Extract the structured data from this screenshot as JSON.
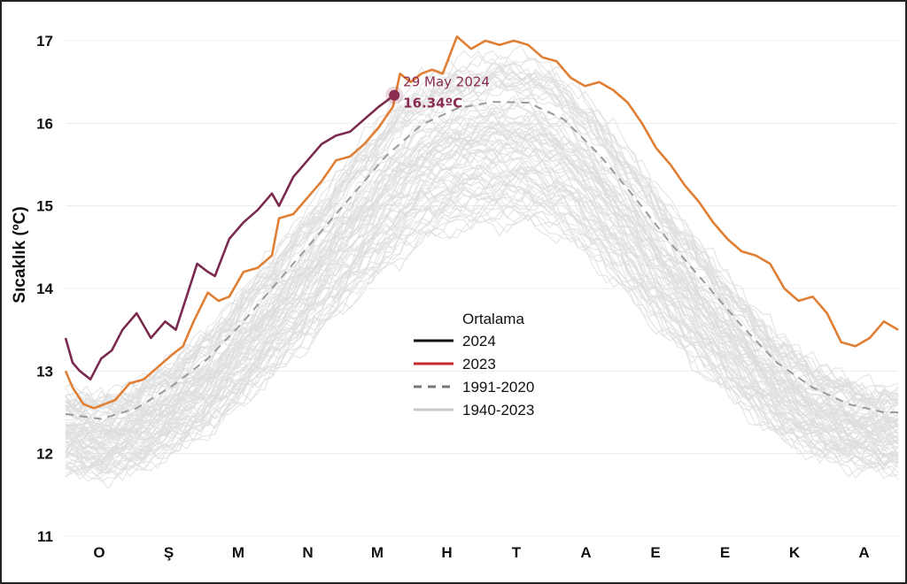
{
  "chart_data": {
    "type": "line",
    "title": "",
    "xlabel": "",
    "ylabel": "Sıcaklık (ºC)",
    "ylim": [
      11,
      17
    ],
    "yticks": [
      11,
      12,
      13,
      14,
      15,
      16,
      17
    ],
    "months": [
      "O",
      "Ş",
      "M",
      "N",
      "M",
      "H",
      "T",
      "A",
      "E",
      "E",
      "K",
      "A"
    ],
    "grid": "horizontal",
    "legend": {
      "title": "Ortalama",
      "position": "center",
      "entries": [
        "2024",
        "2023",
        "1991-2020",
        "1940-2023"
      ]
    },
    "annotation": {
      "date_label": "29 May 2024",
      "value_label": "16.34ºC",
      "x": 4.62,
      "y": 16.34,
      "color": "#8a2c52"
    },
    "series": [
      {
        "name": "2024",
        "color": "#7a2a4e",
        "style": "solid",
        "x": [
          0,
          0.1,
          0.2,
          0.35,
          0.5,
          0.65,
          0.8,
          1.0,
          1.2,
          1.4,
          1.55,
          1.7,
          1.85,
          2.0,
          2.1,
          2.3,
          2.5,
          2.7,
          2.9,
          3.0,
          3.2,
          3.4,
          3.6,
          3.8,
          4.0,
          4.2,
          4.4,
          4.62
        ],
        "y": [
          13.4,
          13.1,
          13.0,
          12.9,
          13.15,
          13.25,
          13.5,
          13.7,
          13.4,
          13.6,
          13.5,
          13.9,
          14.3,
          14.2,
          14.15,
          14.6,
          14.8,
          14.95,
          15.15,
          15.0,
          15.35,
          15.55,
          15.75,
          15.85,
          15.9,
          16.05,
          16.2,
          16.34
        ]
      },
      {
        "name": "2023",
        "color": "#e07e34",
        "style": "solid",
        "x": [
          0,
          0.1,
          0.25,
          0.4,
          0.55,
          0.7,
          0.9,
          1.1,
          1.3,
          1.5,
          1.65,
          1.8,
          2.0,
          2.15,
          2.3,
          2.5,
          2.7,
          2.9,
          3.0,
          3.2,
          3.4,
          3.6,
          3.8,
          4.0,
          4.2,
          4.4,
          4.6,
          4.7,
          4.85,
          5.0,
          5.15,
          5.3,
          5.5,
          5.7,
          5.9,
          6.1,
          6.3,
          6.5,
          6.7,
          6.9,
          7.1,
          7.3,
          7.5,
          7.7,
          7.9,
          8.1,
          8.3,
          8.5,
          8.7,
          8.9,
          9.1,
          9.3,
          9.5,
          9.7,
          9.9,
          10.1,
          10.3,
          10.5,
          10.7,
          10.9,
          11.1,
          11.3,
          11.5,
          11.7
        ],
        "y": [
          13.0,
          12.8,
          12.6,
          12.55,
          12.6,
          12.65,
          12.85,
          12.9,
          13.05,
          13.2,
          13.3,
          13.6,
          13.95,
          13.85,
          13.9,
          14.2,
          14.25,
          14.4,
          14.85,
          14.9,
          15.1,
          15.3,
          15.55,
          15.6,
          15.75,
          15.95,
          16.2,
          16.6,
          16.5,
          16.6,
          16.65,
          16.6,
          17.05,
          16.9,
          17.0,
          16.95,
          17.0,
          16.95,
          16.8,
          16.75,
          16.55,
          16.45,
          16.5,
          16.4,
          16.25,
          16.0,
          15.7,
          15.5,
          15.25,
          15.05,
          14.8,
          14.6,
          14.45,
          14.4,
          14.3,
          14.0,
          13.85,
          13.9,
          13.7,
          13.35,
          13.3,
          13.4,
          13.6,
          13.5
        ]
      },
      {
        "name": "1991-2020",
        "color": "#9a9a9a",
        "style": "dashed",
        "x": [
          0,
          0.5,
          1.0,
          1.5,
          2.0,
          2.5,
          3.0,
          3.5,
          4.0,
          4.5,
          5.0,
          5.5,
          6.0,
          6.5,
          7.0,
          7.5,
          8.0,
          8.5,
          9.0,
          9.5,
          10.0,
          10.5,
          11.0,
          11.5,
          11.7
        ],
        "y": [
          12.48,
          12.42,
          12.55,
          12.82,
          13.15,
          13.6,
          14.1,
          14.6,
          15.1,
          15.6,
          15.98,
          16.18,
          16.26,
          16.25,
          16.05,
          15.62,
          15.1,
          14.55,
          14.05,
          13.55,
          13.1,
          12.8,
          12.6,
          12.5,
          12.5
        ]
      }
    ],
    "historical_band": {
      "name": "1940-2023",
      "color": "#dedede",
      "count": 84,
      "offset_range": [
        -1.1,
        0.45
      ]
    }
  }
}
